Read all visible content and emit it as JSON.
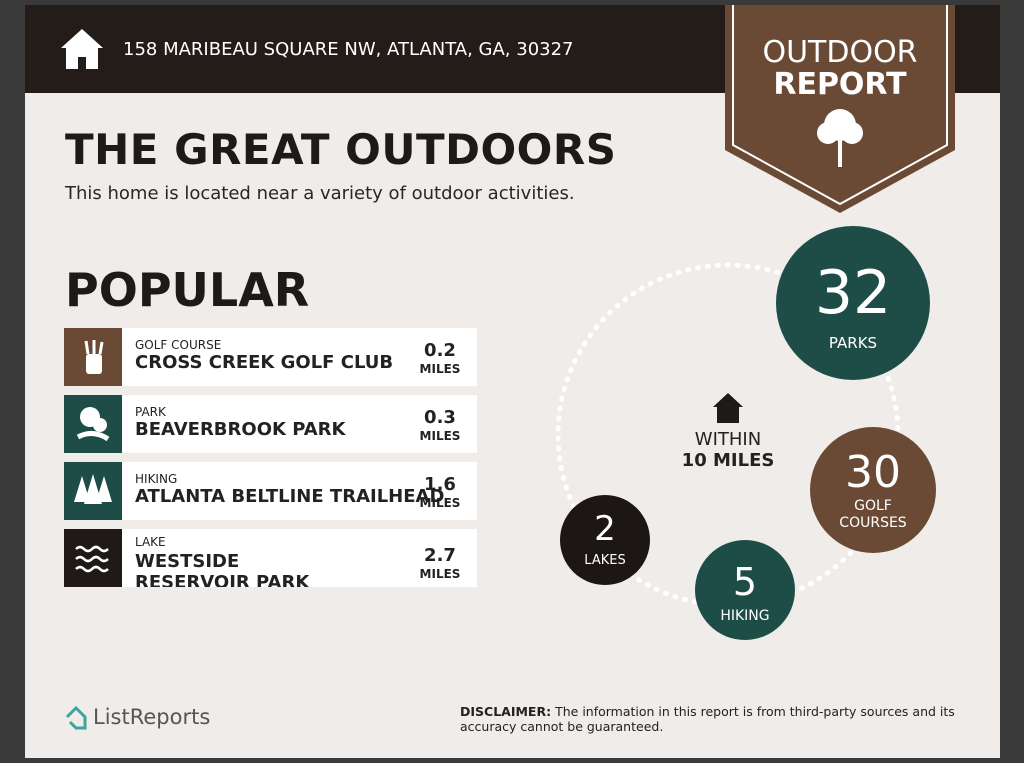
{
  "header": {
    "address": "158 MARIBEAU SQUARE NW, ATLANTA, GA, 30327"
  },
  "badge": {
    "line1": "OUTDOOR",
    "line2": "REPORT"
  },
  "title": "THE GREAT OUTDOORS",
  "subtitle": "This home is located near a variety of outdoor activities.",
  "popular": {
    "title": "POPULAR",
    "items": [
      {
        "category": "GOLF COURSE",
        "name": "CROSS CREEK GOLF CLUB",
        "distance": "0.2",
        "unit": "MILES"
      },
      {
        "category": "PARK",
        "name": "BEAVERBROOK PARK",
        "distance": "0.3",
        "unit": "MILES"
      },
      {
        "category": "HIKING",
        "name": "ATLANTA BELTLINE TRAILHEAD",
        "distance": "1.6",
        "unit": "MILES"
      },
      {
        "category": "LAKE",
        "name": "WESTSIDE RESERVOIR PARK",
        "distance": "2.7",
        "unit": "MILES"
      }
    ]
  },
  "summary": {
    "center": {
      "line1": "WITHIN",
      "line2": "10 MILES"
    },
    "stats": [
      {
        "count": "32",
        "label": "PARKS"
      },
      {
        "count": "30",
        "label": "GOLF COURSES"
      },
      {
        "count": "5",
        "label": "HIKING"
      },
      {
        "count": "2",
        "label": "LAKES"
      }
    ]
  },
  "footer": {
    "brand": "ListReports",
    "disclaimer_label": "DISCLAIMER:",
    "disclaimer": "The information in this report is from third-party sources and its accuracy cannot be guaranteed."
  }
}
